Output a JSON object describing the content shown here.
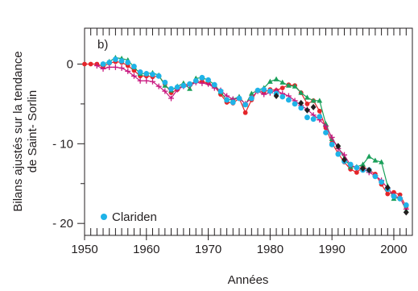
{
  "chart_data": {
    "type": "line",
    "panel_label": "b)",
    "xlabel": "Années",
    "ylabel_line1": "Bilans ajustés sur la tendance",
    "ylabel_line2": "de Saint- Sorlin",
    "xlim": [
      1950,
      2003
    ],
    "ylim": [
      -21.5,
      4.5
    ],
    "x_ticks": [
      1950,
      1960,
      1970,
      1980,
      1990,
      2000
    ],
    "x_tick_labels": [
      "1950",
      "1960",
      "1970",
      "1980",
      "1990",
      "2000"
    ],
    "y_ticks": [
      0,
      -10,
      -20
    ],
    "y_tick_labels": [
      "0",
      "- 10",
      "- 20"
    ],
    "grid": false,
    "legend_position": "bottom-left",
    "legend_entries": [
      {
        "name": "Clariden",
        "color": "#1fb3e8"
      }
    ],
    "series": [
      {
        "id": "red",
        "color": "#e4252a",
        "marker": "circle",
        "line": true,
        "x": [
          1950,
          1951,
          1952,
          1953,
          1954,
          1955,
          1956,
          1957,
          1958,
          1959,
          1960,
          1961,
          1962,
          1963,
          1964,
          1965,
          1966,
          1967,
          1968,
          1969,
          1970,
          1971,
          1972,
          1973,
          1974,
          1975,
          1976,
          1977,
          1978,
          1979,
          1980,
          1981,
          1982,
          1983,
          1984,
          1985,
          1986,
          1987,
          1988,
          1989,
          1990,
          1991,
          1992,
          1993,
          1994,
          1995,
          1996,
          1997,
          1998,
          1999,
          2000,
          2001,
          2002
        ],
        "y": [
          0,
          0,
          0,
          -0.3,
          0.1,
          0.3,
          0.2,
          -0.2,
          -0.8,
          -1.5,
          -1.5,
          -1.6,
          -1.5,
          -2.5,
          -3.6,
          -3.2,
          -2.6,
          -2.5,
          -2.2,
          -2.2,
          -2.4,
          -2.8,
          -3.8,
          -4.8,
          -4.9,
          -4.3,
          -6.1,
          -4.5,
          -3.3,
          -3.5,
          -3.2,
          -3.3,
          -3.0,
          -2.6,
          -2.7,
          -3.6,
          -5.0,
          -4.6,
          -5.9,
          -8.0,
          -9.9,
          -11.2,
          -12.3,
          -13.2,
          -13.6,
          -12.9,
          -13.3,
          -13.8,
          -15.1,
          -16.3,
          -16.1,
          -16.4,
          -17.9
        ]
      },
      {
        "id": "green",
        "color": "#1aa05a",
        "marker": "triangle",
        "line": true,
        "x": [
          1953,
          1954,
          1955,
          1956,
          1957,
          1958,
          1959,
          1960,
          1961,
          1962,
          1963,
          1964,
          1965,
          1966,
          1967,
          1968,
          1969,
          1970,
          1971,
          1972,
          1973,
          1974,
          1975,
          1976,
          1977,
          1978,
          1979,
          1980,
          1981,
          1982,
          1983,
          1984,
          1985,
          1986,
          1987,
          1988,
          1989,
          1990,
          1991,
          1992,
          1993,
          1994,
          1995,
          1996,
          1997,
          1998,
          1999,
          2000,
          2001,
          2002
        ],
        "y": [
          0,
          0.3,
          0.8,
          0.7,
          0.5,
          -0.4,
          -1.2,
          -1.2,
          -1.1,
          -1.4,
          -2.7,
          -3.3,
          -2.8,
          -2.4,
          -3.1,
          -1.8,
          -1.7,
          -2.0,
          -2.6,
          -3.5,
          -4.5,
          -4.4,
          -4.1,
          -5.1,
          -3.7,
          -3.3,
          -3.0,
          -2.2,
          -1.9,
          -2.3,
          -2.7,
          -2.8,
          -3.6,
          -4.2,
          -4.6,
          -4.6,
          -7.5,
          -9.4,
          -10.4,
          -11.8,
          -12.9,
          -12.9,
          -12.6,
          -11.6,
          -12.1,
          -12.3,
          -15.3,
          -16.9,
          -16.7,
          -18.4
        ]
      },
      {
        "id": "magenta",
        "color": "#c8187f",
        "marker": "plus",
        "line": true,
        "x": [
          1952,
          1953,
          1954,
          1955,
          1956,
          1957,
          1958,
          1959,
          1960,
          1961,
          1962,
          1963,
          1964,
          1965,
          1966,
          1967,
          1968,
          1969,
          1970,
          1971,
          1972,
          1973,
          1974,
          1975,
          1976,
          1977,
          1978,
          1979,
          1980,
          1981,
          1982,
          1983,
          1984,
          1985,
          1986,
          1987,
          1988,
          1989,
          1990,
          1991,
          1992,
          1993,
          1994,
          1995,
          1996,
          1997,
          1998,
          1999,
          2000,
          2001,
          2002
        ],
        "y": [
          -0.2,
          -0.6,
          -0.4,
          -0.4,
          -0.5,
          -0.9,
          -1.5,
          -2.1,
          -2.1,
          -2.2,
          -2.8,
          -3.4,
          -4.3,
          -3.2,
          -2.8,
          -2.7,
          -2.3,
          -2.4,
          -2.5,
          -3.0,
          -3.3,
          -4.0,
          -4.4,
          -4.3,
          -5.0,
          -4.2,
          -3.4,
          -3.8,
          -3.6,
          -3.3,
          -3.7,
          -4.0,
          -4.6,
          -5.2,
          -5.7,
          -6.4,
          -7.0,
          -7.8,
          -9.2,
          -10.6,
          -11.4,
          -12.7,
          -13.0,
          -13.1,
          -13.6,
          -14.0,
          -14.6,
          -15.6,
          -16.5,
          -16.8,
          -18.2
        ]
      },
      {
        "id": "clariden",
        "name": "Clariden",
        "color": "#1fb3e8",
        "marker": "circle",
        "line": false,
        "x": [
          1953,
          1954,
          1955,
          1956,
          1957,
          1958,
          1959,
          1960,
          1961,
          1962,
          1963,
          1964,
          1965,
          1966,
          1967,
          1968,
          1969,
          1970,
          1971,
          1972,
          1973,
          1974,
          1975,
          1976,
          1977,
          1978,
          1979,
          1980,
          1981,
          1982,
          1983,
          1984,
          1985,
          1986,
          1987,
          1988,
          1989,
          1990,
          1991,
          1992,
          1993,
          1994,
          1995,
          1996,
          1997,
          1998,
          1999,
          2000,
          2001,
          2002
        ],
        "y": [
          0,
          0.2,
          0.6,
          0.4,
          0.2,
          -0.3,
          -1.0,
          -1.2,
          -1.3,
          -1.5,
          -2.3,
          -3.1,
          -2.9,
          -2.7,
          -2.5,
          -2.1,
          -1.7,
          -2.0,
          -2.6,
          -3.4,
          -4.5,
          -4.8,
          -4.3,
          -5.1,
          -4.3,
          -3.3,
          -3.2,
          -3.4,
          -3.7,
          -4.1,
          -4.5,
          -5.0,
          -5.5,
          -6.7,
          -6.9,
          -6.6,
          -8.6,
          -10.1,
          -11.3,
          -12.2,
          -12.6,
          -13.0,
          -13.3,
          -13.3,
          -14.1,
          -14.8,
          -15.7,
          -16.6,
          -16.9,
          -17.7
        ]
      },
      {
        "id": "black",
        "color": "#231f20",
        "marker": "diamond",
        "line": false,
        "x": [
          1981,
          1985,
          1986,
          1987,
          1991,
          1992,
          1995,
          1996,
          1999,
          2002
        ],
        "y": [
          -4.0,
          -4.9,
          -5.8,
          -5.4,
          -10.3,
          -12.0,
          -13.1,
          -13.3,
          -15.5,
          -18.6
        ]
      }
    ]
  }
}
